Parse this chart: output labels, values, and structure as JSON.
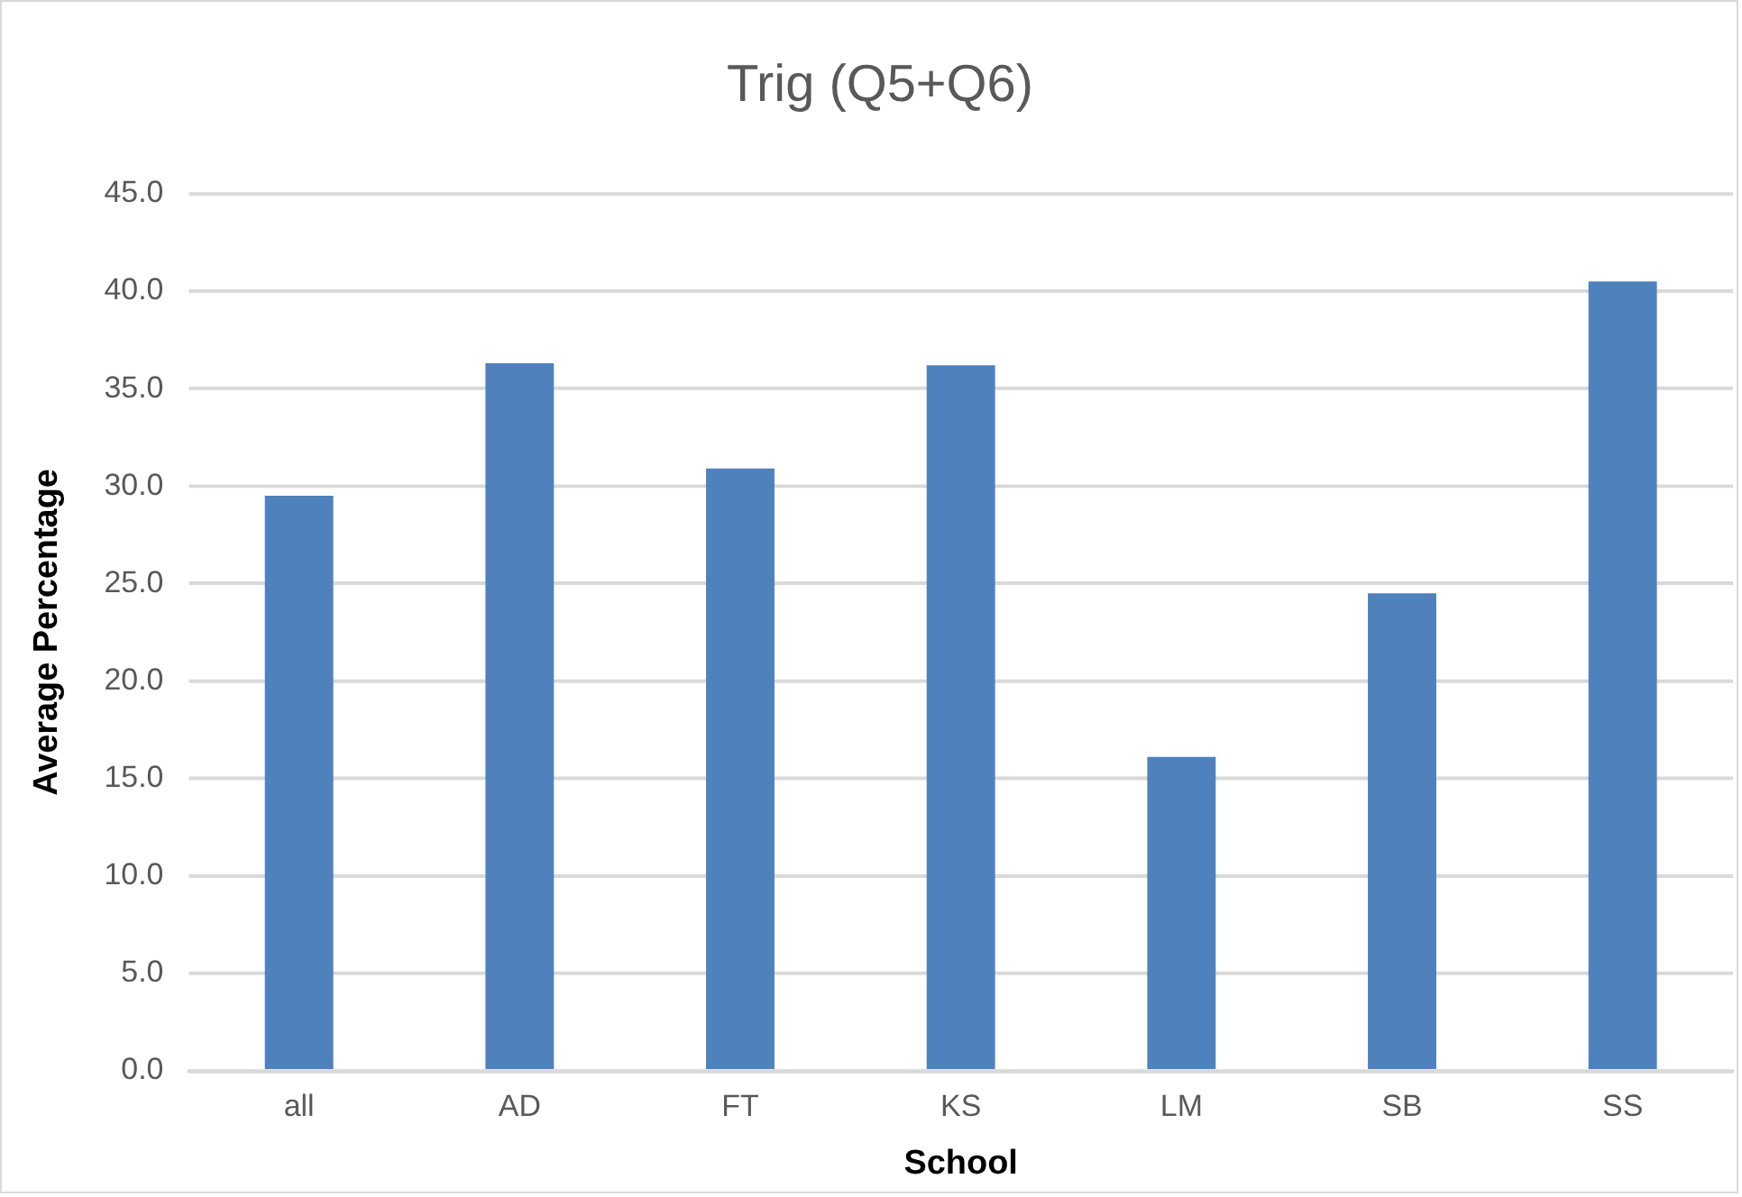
{
  "chart_data": {
    "type": "bar",
    "title": "Trig (Q5+Q6)",
    "xlabel": "School",
    "ylabel": "Average Percentage",
    "categories": [
      "all",
      "AD",
      "FT",
      "KS",
      "LM",
      "SB",
      "SS"
    ],
    "values": [
      29.5,
      36.3,
      30.9,
      36.2,
      16.1,
      24.5,
      40.5
    ],
    "color": "#4f81bd",
    "ylim": [
      0,
      45
    ],
    "yticks": [
      {
        "value": 0,
        "label": "0.0"
      },
      {
        "value": 5,
        "label": "5.0"
      },
      {
        "value": 10,
        "label": "10.0"
      },
      {
        "value": 15,
        "label": "15.0"
      },
      {
        "value": 20,
        "label": "20.0"
      },
      {
        "value": 25,
        "label": "25.0"
      },
      {
        "value": 30,
        "label": "30.0"
      },
      {
        "value": 35,
        "label": "35.0"
      },
      {
        "value": 40,
        "label": "40.0"
      },
      {
        "value": 45,
        "label": "45.0"
      }
    ],
    "grid": "y"
  }
}
